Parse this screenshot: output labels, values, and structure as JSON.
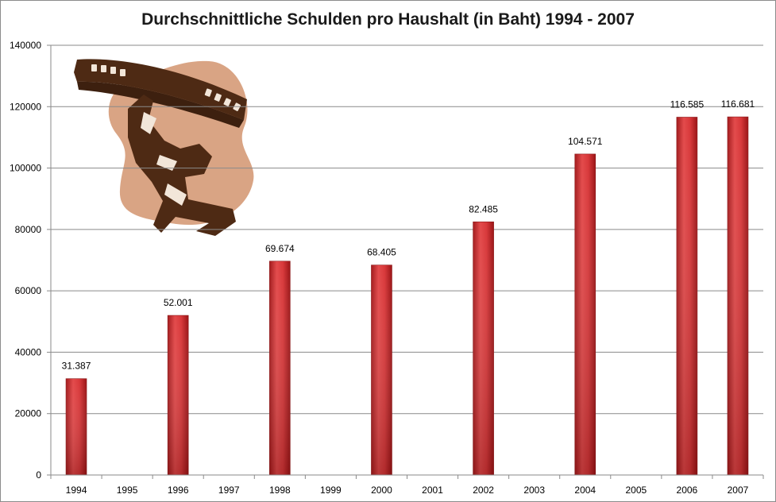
{
  "chart_data": {
    "type": "bar",
    "title": "Durchschnittliche Schulden pro Haushalt (in Baht) 1994 - 2007",
    "xlabel": "",
    "ylabel": "",
    "categories": [
      "1994",
      "1995",
      "1996",
      "1997",
      "1998",
      "1999",
      "2000",
      "2001",
      "2002",
      "2003",
      "2004",
      "2005",
      "2006",
      "2007"
    ],
    "values": [
      31387,
      null,
      52001,
      null,
      69674,
      null,
      68405,
      null,
      82485,
      null,
      104571,
      null,
      116585,
      116681
    ],
    "data_labels": [
      "31.387",
      "",
      "52.001",
      "",
      "69.674",
      "",
      "68.405",
      "",
      "82.485",
      "",
      "104.571",
      "",
      "116.585",
      "116.681"
    ],
    "ylim": [
      0,
      140000
    ],
    "yticks": [
      0,
      20000,
      40000,
      60000,
      80000,
      100000,
      120000,
      140000
    ],
    "ytick_labels": [
      "0",
      "20000",
      "40000",
      "60000",
      "80000",
      "100000",
      "120000",
      "140000"
    ],
    "grid": true,
    "legend": "none",
    "bar_color": "#d8383a"
  },
  "illustration": {
    "icon": "man-carrying-coin-icon",
    "colors": [
      "#4e2a14",
      "#d9a484"
    ]
  }
}
